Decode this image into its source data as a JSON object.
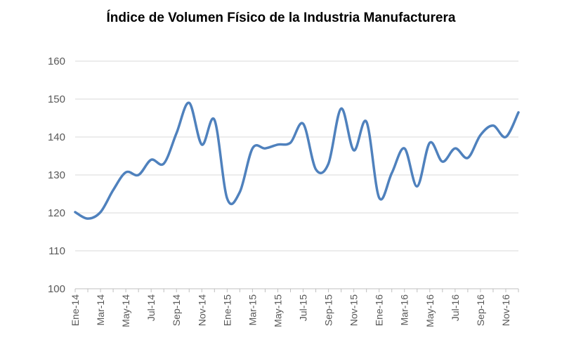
{
  "chart_data": {
    "type": "line",
    "title": "Índice de Volumen Físico de la Industria Manufacturera",
    "xlabel": "",
    "ylabel": "",
    "ylim": [
      100,
      160
    ],
    "yticks": [
      100,
      110,
      120,
      130,
      140,
      150,
      160
    ],
    "grid": true,
    "legend": "none",
    "line_color": "#4f81bd",
    "x": [
      "Ene-14",
      "Feb-14",
      "Mar-14",
      "Abr-14",
      "May-14",
      "Jun-14",
      "Jul-14",
      "Ago-14",
      "Sep-14",
      "Oct-14",
      "Nov-14",
      "Dic-14",
      "Ene-15",
      "Feb-15",
      "Mar-15",
      "Abr-15",
      "May-15",
      "Jun-15",
      "Jul-15",
      "Ago-15",
      "Sep-15",
      "Oct-15",
      "Nov-15",
      "Dic-15",
      "Ene-16",
      "Feb-16",
      "Mar-16",
      "Abr-16",
      "May-16",
      "Jun-16",
      "Jul-16",
      "Ago-16",
      "Sep-16",
      "Oct-16",
      "Nov-16",
      "Dic-16"
    ],
    "tick_labels": [
      "Ene-14",
      "Mar-14",
      "May-14",
      "Jul-14",
      "Sep-14",
      "Nov-14",
      "Ene-15",
      "Mar-15",
      "May-15",
      "Jul-15",
      "Sep-15",
      "Nov-15",
      "Ene-16",
      "Mar-16",
      "May-16",
      "Jul-16",
      "Sep-16",
      "Nov-16"
    ],
    "series": [
      {
        "values": [
          120.2,
          118.5,
          120.2,
          126.0,
          130.7,
          130.0,
          134.0,
          133.0,
          141.0,
          149.0,
          138.0,
          144.5,
          123.8,
          125.5,
          137.0,
          137.0,
          138.0,
          138.5,
          143.5,
          131.5,
          133.0,
          147.5,
          136.5,
          144.0,
          124.0,
          130.5,
          137.0,
          127.0,
          138.5,
          133.5,
          137.0,
          134.5,
          140.5,
          143.0,
          140.0,
          146.5
        ]
      }
    ]
  }
}
